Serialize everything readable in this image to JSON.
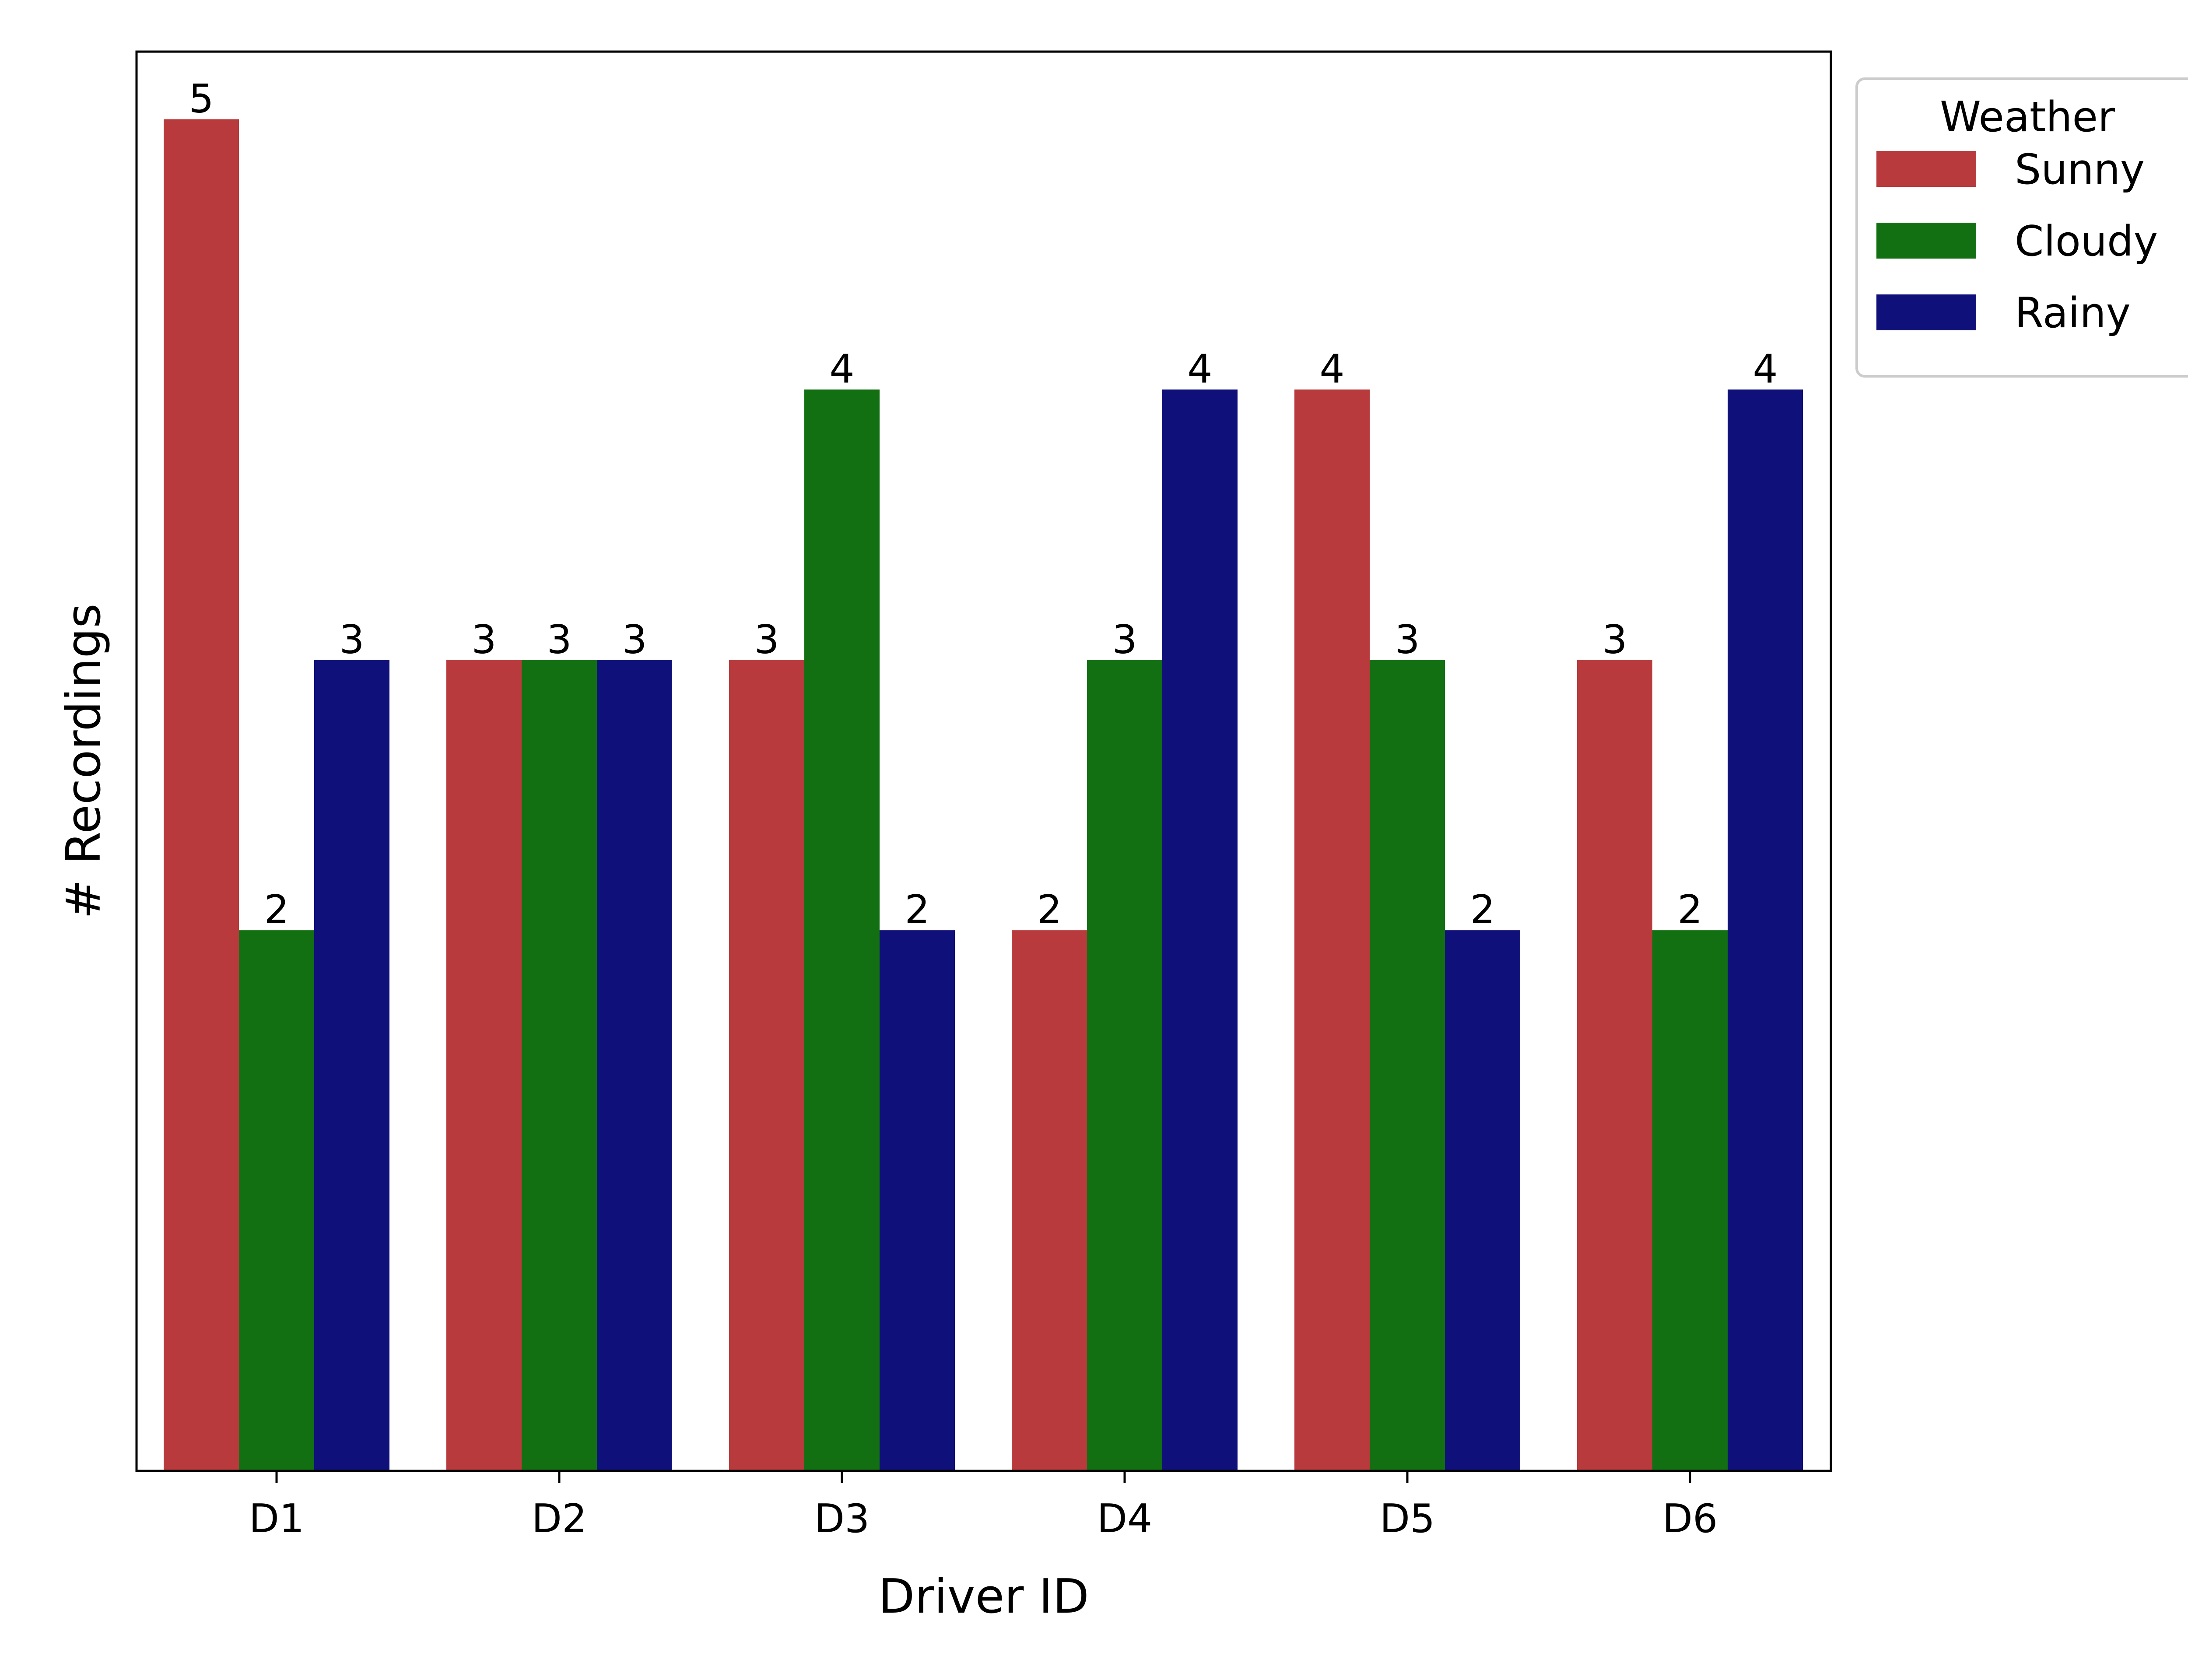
{
  "chart_data": {
    "type": "bar",
    "title": "",
    "xlabel": "Driver ID",
    "ylabel": "# Recordings",
    "ylim": [
      0,
      5.25
    ],
    "y_ticks_shown": false,
    "grid": false,
    "categories": [
      "D1",
      "D2",
      "D3",
      "D4",
      "D5",
      "D6"
    ],
    "series": [
      {
        "name": "Sunny",
        "color": "#b83a3c",
        "values": [
          5,
          3,
          3,
          2,
          4,
          3
        ]
      },
      {
        "name": "Cloudy",
        "color": "#127012",
        "values": [
          2,
          3,
          4,
          3,
          3,
          2
        ]
      },
      {
        "name": "Rainy",
        "color": "#0f1079",
        "values": [
          3,
          3,
          2,
          4,
          2,
          4
        ]
      }
    ],
    "data_labels": true,
    "legend": {
      "title": "Weather",
      "placement": "outside-top-right"
    }
  }
}
